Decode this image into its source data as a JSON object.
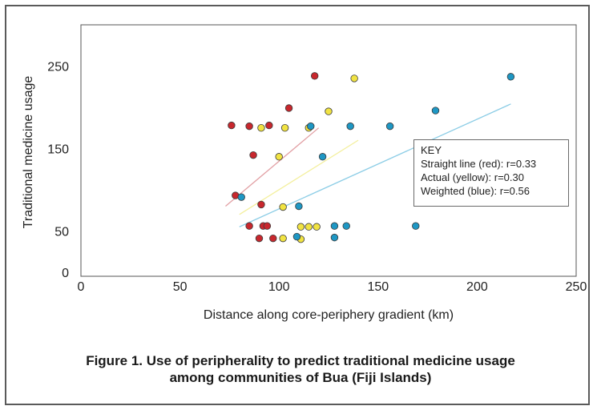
{
  "caption": {
    "line1": "Figure 1. Use of peripherality to predict traditional medicine usage",
    "line2": "among communities of Bua (Fiji Islands)"
  },
  "key": {
    "title": "KEY",
    "red": "Straight line (red): r=0.33",
    "yellow": "Actual (yellow): r=0.30",
    "blue": "Weighted (blue): r=0.56"
  },
  "colors": {
    "red": "#c8272d",
    "yellow": "#f1e342",
    "blue": "#1e97c4",
    "red_line": "#e2a0a4",
    "yellow_line": "#f3ef9c",
    "blue_line": "#8ccde6"
  },
  "chart_data": {
    "type": "scatter",
    "xlabel": "Distance along core-periphery gradient (km)",
    "ylabel": "Traditional medicine usage",
    "xlim": [
      0,
      250
    ],
    "ylim": [
      -5,
      300
    ],
    "xticks": [
      0,
      50,
      100,
      150,
      200,
      250
    ],
    "yticks": [
      0,
      50,
      150,
      250
    ],
    "grid": false,
    "legend": "right",
    "series": [
      {
        "name": "Straight line (red)",
        "color": "red",
        "points": [
          [
            76,
            178
          ],
          [
            85,
            177
          ],
          [
            95,
            178
          ],
          [
            105,
            199
          ],
          [
            118,
            238
          ],
          [
            87,
            142
          ],
          [
            78,
            93
          ],
          [
            91,
            82
          ],
          [
            85,
            56
          ],
          [
            92,
            56
          ],
          [
            94,
            56
          ],
          [
            90,
            41
          ],
          [
            97,
            41
          ]
        ],
        "trend": [
          [
            73,
            80
          ],
          [
            120,
            175
          ]
        ]
      },
      {
        "name": "Actual (yellow)",
        "color": "yellow",
        "points": [
          [
            91,
            175
          ],
          [
            103,
            175
          ],
          [
            115,
            175
          ],
          [
            100,
            140
          ],
          [
            125,
            195
          ],
          [
            138,
            235
          ],
          [
            102,
            79
          ],
          [
            111,
            55
          ],
          [
            115,
            55
          ],
          [
            119,
            55
          ],
          [
            102,
            41
          ],
          [
            111,
            40
          ]
        ],
        "trend": [
          [
            80,
            70
          ],
          [
            140,
            160
          ]
        ]
      },
      {
        "name": "Weighted (blue)",
        "color": "blue",
        "points": [
          [
            116,
            177
          ],
          [
            136,
            177
          ],
          [
            156,
            177
          ],
          [
            179,
            196
          ],
          [
            217,
            237
          ],
          [
            122,
            140
          ],
          [
            81,
            91
          ],
          [
            110,
            80
          ],
          [
            128,
            56
          ],
          [
            134,
            56
          ],
          [
            169,
            56
          ],
          [
            109,
            43
          ],
          [
            128,
            42
          ]
        ],
        "trend": [
          [
            80,
            55
          ],
          [
            217,
            204
          ]
        ]
      }
    ]
  }
}
